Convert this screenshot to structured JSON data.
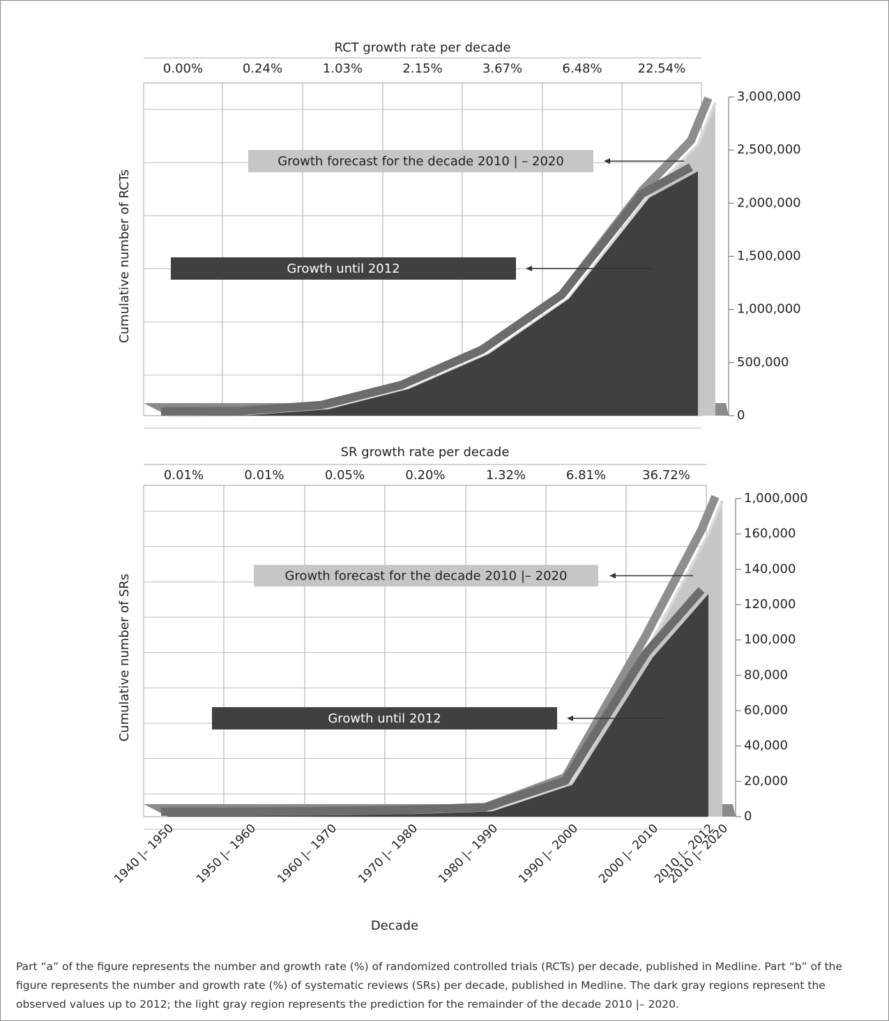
{
  "chart_data": [
    {
      "type": "area",
      "title": "RCT growth rate per decade",
      "y_label": "Cumulative number of RCTs",
      "growth_rate_labels": [
        "0.00%",
        "0.24%",
        "1.03%",
        "2.15%",
        "3.67%",
        "6.48%",
        "22.54%"
      ],
      "series": [
        {
          "name": "Growth forecast for the decade 2010 | – 2020",
          "color": "#c6c6c6",
          "edge": "#8e8e8e",
          "values": [
            0,
            5000,
            60000,
            250000,
            580000,
            1100000,
            2080000,
            2550000,
            2950000
          ]
        },
        {
          "name": "Growth until 2012",
          "color": "#404040",
          "edge": "#6c6c6c",
          "values": [
            0,
            5000,
            60000,
            250000,
            580000,
            1100000,
            2050000,
            2300000,
            null
          ]
        }
      ],
      "ylim": [
        0,
        3000000
      ],
      "yticks": [
        0,
        {
          "value": 500000,
          "label": "500,000"
        },
        {
          "value": 1000000,
          "label": "1,000,000"
        },
        {
          "value": 1500000,
          "label": "1,500,000"
        },
        {
          "value": 2000000,
          "label": "2,000,000"
        },
        {
          "value": 2500000,
          "label": "2,500,000"
        },
        {
          "value": 3000000,
          "label": "3,000,000"
        }
      ],
      "grid": true
    },
    {
      "type": "area",
      "title": "SR growth rate per decade",
      "y_label": "Cumulative number of  SRs",
      "x_label": "Decade",
      "categories": [
        "1940 |– 1950",
        "1950 |– 1960",
        "1960 |– 1970",
        "1970 |– 1980",
        "1980 |– 1990",
        "1990 |– 2000",
        "2000 |– 2010",
        "2010 |– 2012",
        "2010 |– 2020"
      ],
      "growth_rate_labels": [
        "0.01%",
        "0.01%",
        "0.05%",
        "0.20%",
        "1.32%",
        "6.81%",
        "36.72%"
      ],
      "series": [
        {
          "name": "Growth forecast for the decade 2010 |– 2020",
          "color": "#c6c6c6",
          "edge": "#8e8e8e",
          "values": [
            500,
            500,
            800,
            1500,
            3000,
            20000,
            100000,
            160000,
            950000
          ]
        },
        {
          "name": "Growth until 2012",
          "color": "#404040",
          "edge": "#6c6c6c",
          "values": [
            500,
            500,
            800,
            1500,
            3000,
            18000,
            90000,
            126000,
            null
          ]
        }
      ],
      "ylim": [
        0,
        1000000
      ],
      "yticks": [
        0,
        {
          "value": 20000,
          "label": "20,000"
        },
        {
          "value": 40000,
          "label": "40,000"
        },
        {
          "value": 60000,
          "label": "60,000"
        },
        {
          "value": 80000,
          "label": "80,000"
        },
        {
          "value": 100000,
          "label": "100,000"
        },
        {
          "value": 120000,
          "label": "120,000"
        },
        {
          "value": 140000,
          "label": "140,000"
        },
        {
          "value": 160000,
          "label": "160,000"
        },
        {
          "value": 1000000,
          "label": "1,000,000"
        }
      ],
      "grid": true
    }
  ],
  "caption": "Part “a” of the figure represents the number and growth rate (%) of randomized controlled trials (RCTs) per decade, published in Medline. Part “b” of the figure represents the number and growth rate (%) of systematic reviews (SRs) per decade, published in Medline. The dark gray regions represent the observed values up to 2012; the light gray region represents the prediction for the remainder of the decade 2010 |– 2020."
}
